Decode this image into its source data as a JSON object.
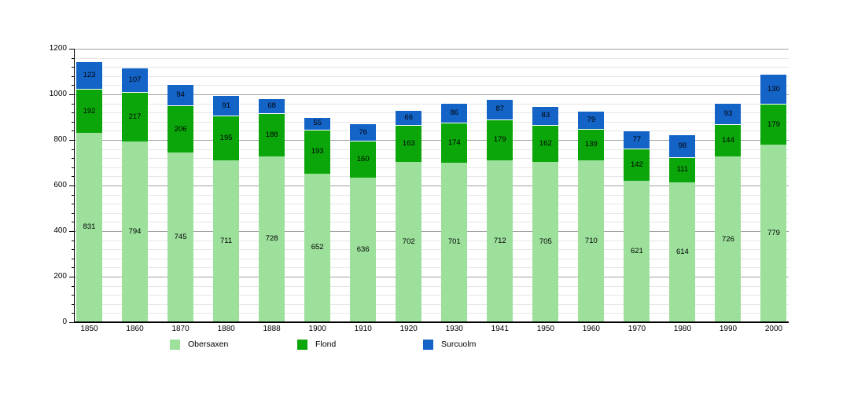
{
  "chart_data": {
    "type": "bar",
    "stacked": true,
    "title": "",
    "xlabel": "",
    "ylabel": "",
    "categories": [
      "1850",
      "1860",
      "1870",
      "1880",
      "1888",
      "1900",
      "1910",
      "1920",
      "1930",
      "1941",
      "1950",
      "1960",
      "1970",
      "1980",
      "1990",
      "2000"
    ],
    "series": [
      {
        "name": "Obersaxen",
        "color": "#9CE09C",
        "values": [
          831,
          794,
          745,
          711,
          728,
          652,
          636,
          702,
          701,
          712,
          705,
          710,
          621,
          614,
          726,
          779
        ]
      },
      {
        "name": "Flond",
        "color": "#0AA60A",
        "values": [
          192,
          217,
          206,
          195,
          188,
          193,
          160,
          163,
          174,
          179,
          162,
          139,
          142,
          111,
          144,
          179
        ]
      },
      {
        "name": "Surcuolm",
        "color": "#1464C8",
        "values": [
          123,
          107,
          94,
          91,
          68,
          55,
          76,
          66,
          86,
          87,
          83,
          79,
          77,
          98,
          93,
          130
        ]
      }
    ],
    "totals": [
      1146,
      1118,
      1045,
      997,
      984,
      900,
      872,
      931,
      961,
      978,
      950,
      928,
      840,
      823,
      963,
      1088
    ],
    "ylim": [
      0,
      1200
    ],
    "y_major_step": 200,
    "y_minor_step": 40,
    "y_tick_labels": [
      "0",
      "200",
      "400",
      "600",
      "800",
      "1000",
      "1200"
    ],
    "grid": true,
    "show_value_labels": true,
    "legend_position": "bottom",
    "legend": [
      "Obersaxen",
      "Flond",
      "Surcuolm"
    ]
  },
  "style_colors": {
    "minor_gridline": "#e6e6e6",
    "major_gridline": "#a0a0a0",
    "axis": "#000000",
    "label_text": "#000000",
    "background": "#ffffff"
  }
}
